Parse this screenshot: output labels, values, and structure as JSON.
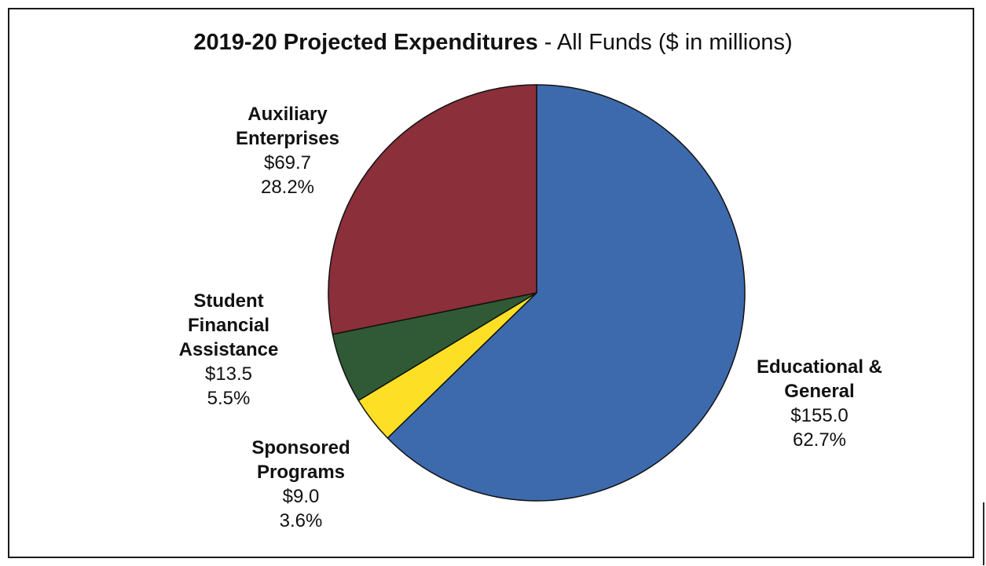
{
  "chart_data": {
    "type": "pie",
    "title": "2019-20 Projected Expenditures",
    "subtitle": " - All Funds ($ in millions)",
    "slices": [
      {
        "label_lines": [
          "Educational &",
          "General"
        ],
        "value": 155.0,
        "value_text": "$155.0",
        "percent_text": "62.7%",
        "color": "#3d6aad"
      },
      {
        "label_lines": [
          "Sponsored",
          "Programs"
        ],
        "value": 9.0,
        "value_text": "$9.0",
        "percent_text": "3.6%",
        "color": "#fde026"
      },
      {
        "label_lines": [
          "Student",
          "Financial",
          "Assistance"
        ],
        "value": 13.5,
        "value_text": "$13.5",
        "percent_text": "5.5%",
        "color": "#2f5a35"
      },
      {
        "label_lines": [
          "Auxiliary",
          "Enterprises"
        ],
        "value": 69.7,
        "value_text": "$69.7",
        "percent_text": "28.2%",
        "color": "#8b2f3a"
      }
    ],
    "start_angle": "12 o'clock",
    "direction": "clockwise"
  }
}
